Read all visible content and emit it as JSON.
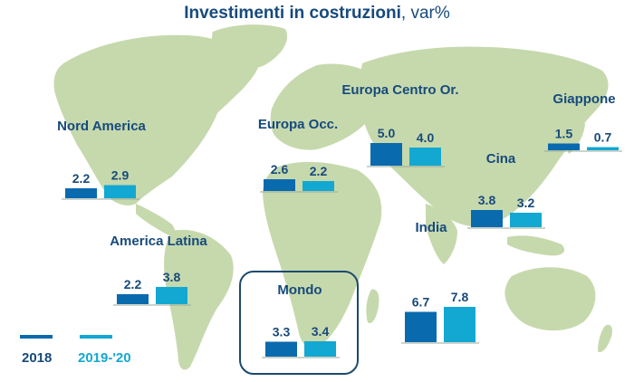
{
  "title": {
    "text": "Investimenti in costruzioni",
    "unit": ", var%"
  },
  "colors": {
    "series_2018": "#0a6aae",
    "series_2019_20": "#13a8d2",
    "land": "#c6d9ad",
    "label": "#174a7c",
    "box_border": "#1c4a6e"
  },
  "legend": [
    {
      "label": "2018",
      "color": "#0a6aae"
    },
    {
      "label": "2019-'20",
      "color": "#13a8d2"
    }
  ],
  "chart_data": {
    "type": "bar",
    "title": "Investimenti in costruzioni, var%",
    "series": [
      {
        "name": "2018"
      },
      {
        "name": "2019-'20"
      }
    ],
    "regions": [
      {
        "name": "Nord America",
        "values": [
          2.2,
          2.9
        ]
      },
      {
        "name": "America Latina",
        "values": [
          2.2,
          3.8
        ]
      },
      {
        "name": "Mondo",
        "values": [
          3.3,
          3.4
        ]
      },
      {
        "name": "Europa Occ.",
        "values": [
          2.6,
          2.2
        ]
      },
      {
        "name": "Europa Centro Or.",
        "values": [
          5.0,
          4.0
        ]
      },
      {
        "name": "India",
        "values": [
          6.7,
          7.8
        ]
      },
      {
        "name": "Cina",
        "values": [
          3.8,
          3.2
        ]
      },
      {
        "name": "Giappone",
        "values": [
          1.5,
          0.7
        ]
      }
    ]
  }
}
